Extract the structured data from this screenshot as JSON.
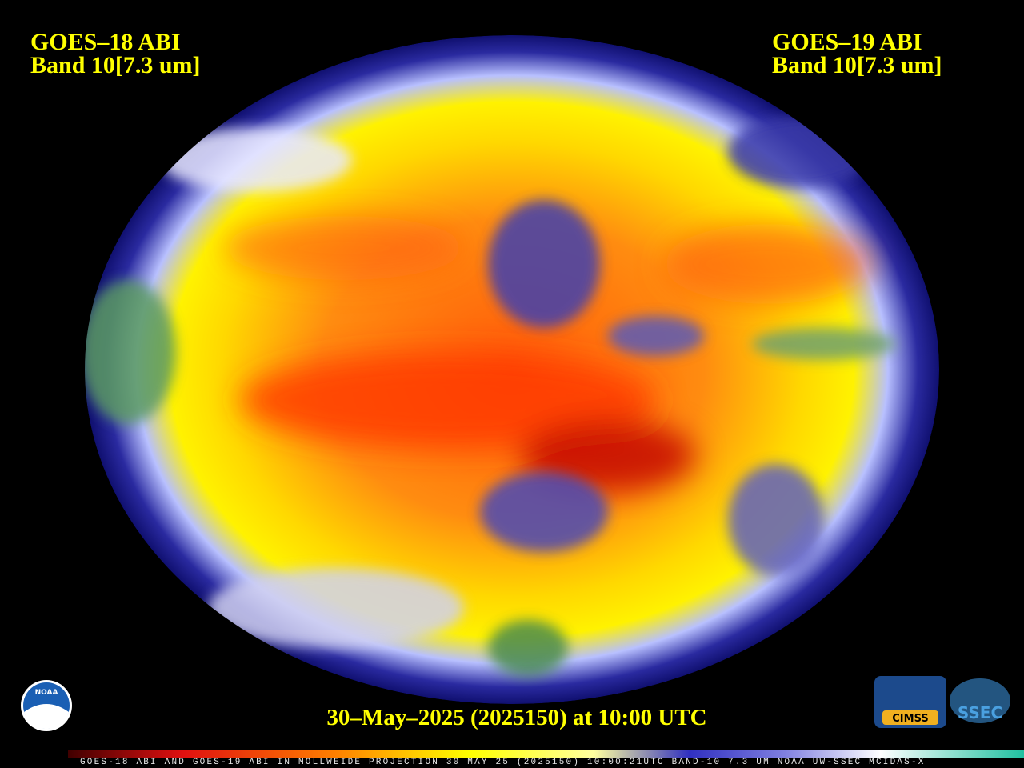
{
  "header": {
    "left": {
      "satellite": "GOES–18 ABI",
      "band": "Band 10[7.3 um]"
    },
    "right": {
      "satellite": "GOES–19 ABI",
      "band": "Band 10[7.3 um]"
    }
  },
  "timestamp": "30–May–2025 (2025150) at 10:00 UTC",
  "footer": "GOES-18 ABI AND GOES-19 ABI IN MOLLWEIDE PROJECTION 30 MAY 25 (2025150) 10:00:21UTC BAND-10 7.3 UM NOAA UW-SSEC MCIDAS-X",
  "logos": {
    "noaa": "NOAA",
    "cimss": "CIMSS",
    "ssec": "SSEC"
  }
}
